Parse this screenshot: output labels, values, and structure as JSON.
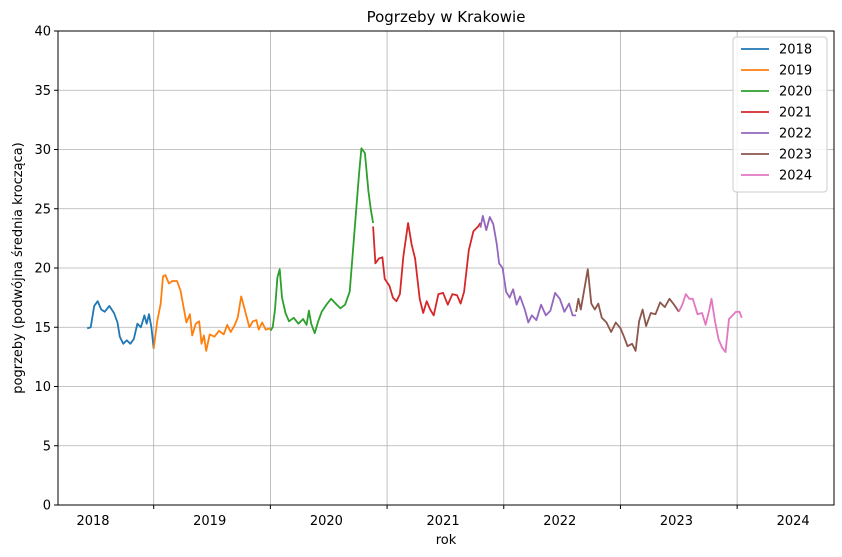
{
  "chart_data": {
    "type": "line",
    "title": "Pogrzeby w Krakowie",
    "xlabel": "rok",
    "ylabel": "pogrzeby (podwójna średnia krocząca)",
    "ylim": [
      0,
      40
    ],
    "xlim": [
      2017.7,
      2024.35
    ],
    "yticks": [
      0,
      5,
      10,
      15,
      20,
      25,
      30,
      35,
      40
    ],
    "xtick_labels": [
      {
        "label": "2018",
        "x": 2018.0
      },
      {
        "label": "2019",
        "x": 2019.0
      },
      {
        "label": "2020",
        "x": 2020.0
      },
      {
        "label": "2021",
        "x": 2021.0
      },
      {
        "label": "2022",
        "x": 2022.0
      },
      {
        "label": "2023",
        "x": 2023.0
      },
      {
        "label": "2024",
        "x": 2024.0
      }
    ],
    "vgrid": [
      2018.52,
      2019.52,
      2020.52,
      2021.52,
      2022.52,
      2023.52
    ],
    "grid": true,
    "legend_position": "top-right",
    "series": [
      {
        "name": "2018",
        "color": "#1f77b4",
        "points": [
          [
            2017.95,
            14.9
          ],
          [
            2017.98,
            15.0
          ],
          [
            2018.01,
            16.8
          ],
          [
            2018.04,
            17.2
          ],
          [
            2018.07,
            16.5
          ],
          [
            2018.1,
            16.3
          ],
          [
            2018.14,
            16.8
          ],
          [
            2018.18,
            16.2
          ],
          [
            2018.21,
            15.4
          ],
          [
            2018.23,
            14.2
          ],
          [
            2018.26,
            13.6
          ],
          [
            2018.29,
            13.9
          ],
          [
            2018.32,
            13.6
          ],
          [
            2018.35,
            14.0
          ],
          [
            2018.38,
            15.3
          ],
          [
            2018.41,
            15.0
          ],
          [
            2018.44,
            16.0
          ],
          [
            2018.46,
            15.3
          ],
          [
            2018.48,
            16.1
          ],
          [
            2018.5,
            15.0
          ],
          [
            2018.52,
            13.2
          ]
        ]
      },
      {
        "name": "2019",
        "color": "#ff7f0e",
        "points": [
          [
            2018.52,
            13.2
          ],
          [
            2018.55,
            15.5
          ],
          [
            2018.58,
            17.0
          ],
          [
            2018.6,
            19.3
          ],
          [
            2018.62,
            19.4
          ],
          [
            2018.65,
            18.7
          ],
          [
            2018.68,
            18.9
          ],
          [
            2018.72,
            18.9
          ],
          [
            2018.75,
            18.1
          ],
          [
            2018.78,
            16.5
          ],
          [
            2018.8,
            15.4
          ],
          [
            2018.83,
            16.1
          ],
          [
            2018.85,
            14.3
          ],
          [
            2018.88,
            15.3
          ],
          [
            2018.91,
            15.5
          ],
          [
            2018.93,
            13.6
          ],
          [
            2018.95,
            14.3
          ],
          [
            2018.97,
            13.0
          ],
          [
            2019.0,
            14.4
          ],
          [
            2019.04,
            14.2
          ],
          [
            2019.08,
            14.7
          ],
          [
            2019.12,
            14.4
          ],
          [
            2019.15,
            15.2
          ],
          [
            2019.18,
            14.6
          ],
          [
            2019.21,
            15.1
          ],
          [
            2019.24,
            15.8
          ],
          [
            2019.27,
            17.6
          ],
          [
            2019.3,
            16.5
          ],
          [
            2019.34,
            15.0
          ],
          [
            2019.37,
            15.5
          ],
          [
            2019.4,
            15.6
          ],
          [
            2019.42,
            14.8
          ],
          [
            2019.45,
            15.4
          ],
          [
            2019.48,
            14.8
          ],
          [
            2019.52,
            14.9
          ]
        ]
      },
      {
        "name": "2020",
        "color": "#2ca02c",
        "points": [
          [
            2019.52,
            14.7
          ],
          [
            2019.54,
            15.0
          ],
          [
            2019.56,
            16.5
          ],
          [
            2019.58,
            19.2
          ],
          [
            2019.6,
            19.9
          ],
          [
            2019.62,
            17.5
          ],
          [
            2019.65,
            16.2
          ],
          [
            2019.68,
            15.5
          ],
          [
            2019.72,
            15.8
          ],
          [
            2019.76,
            15.3
          ],
          [
            2019.8,
            15.7
          ],
          [
            2019.83,
            15.2
          ],
          [
            2019.85,
            16.4
          ],
          [
            2019.87,
            15.3
          ],
          [
            2019.9,
            14.5
          ],
          [
            2019.93,
            15.5
          ],
          [
            2019.96,
            16.3
          ],
          [
            2020.0,
            16.9
          ],
          [
            2020.04,
            17.4
          ],
          [
            2020.08,
            17.0
          ],
          [
            2020.12,
            16.6
          ],
          [
            2020.16,
            16.9
          ],
          [
            2020.2,
            18.0
          ],
          [
            2020.24,
            23.0
          ],
          [
            2020.28,
            28.0
          ],
          [
            2020.3,
            30.1
          ],
          [
            2020.33,
            29.7
          ],
          [
            2020.36,
            26.5
          ],
          [
            2020.38,
            25.0
          ],
          [
            2020.4,
            23.8
          ]
        ]
      },
      {
        "name": "2021",
        "color": "#d62728",
        "points": [
          [
            2020.4,
            23.5
          ],
          [
            2020.42,
            20.4
          ],
          [
            2020.45,
            20.8
          ],
          [
            2020.48,
            20.9
          ],
          [
            2020.5,
            19.1
          ],
          [
            2020.54,
            18.5
          ],
          [
            2020.57,
            17.5
          ],
          [
            2020.6,
            17.2
          ],
          [
            2020.63,
            17.8
          ],
          [
            2020.66,
            21.0
          ],
          [
            2020.7,
            23.8
          ],
          [
            2020.73,
            22.0
          ],
          [
            2020.76,
            20.8
          ],
          [
            2020.8,
            17.4
          ],
          [
            2020.83,
            16.2
          ],
          [
            2020.86,
            17.2
          ],
          [
            2020.89,
            16.5
          ],
          [
            2020.92,
            16.0
          ],
          [
            2020.96,
            17.8
          ],
          [
            2021.0,
            17.9
          ],
          [
            2021.04,
            16.9
          ],
          [
            2021.08,
            17.8
          ],
          [
            2021.12,
            17.7
          ],
          [
            2021.15,
            17.0
          ],
          [
            2021.18,
            18.0
          ],
          [
            2021.22,
            21.5
          ],
          [
            2021.26,
            23.1
          ],
          [
            2021.3,
            23.5
          ],
          [
            2021.32,
            23.8
          ]
        ]
      },
      {
        "name": "2022",
        "color": "#9467bd",
        "points": [
          [
            2021.32,
            23.4
          ],
          [
            2021.34,
            24.4
          ],
          [
            2021.37,
            23.2
          ],
          [
            2021.4,
            24.3
          ],
          [
            2021.43,
            23.7
          ],
          [
            2021.46,
            22.0
          ],
          [
            2021.48,
            20.4
          ],
          [
            2021.51,
            20.0
          ],
          [
            2021.54,
            18.0
          ],
          [
            2021.57,
            17.5
          ],
          [
            2021.6,
            18.2
          ],
          [
            2021.63,
            16.9
          ],
          [
            2021.66,
            17.6
          ],
          [
            2021.7,
            16.5
          ],
          [
            2021.73,
            15.4
          ],
          [
            2021.76,
            16.0
          ],
          [
            2021.8,
            15.6
          ],
          [
            2021.84,
            16.9
          ],
          [
            2021.88,
            16.0
          ],
          [
            2021.92,
            16.4
          ],
          [
            2021.96,
            17.9
          ],
          [
            2022.0,
            17.4
          ],
          [
            2022.04,
            16.3
          ],
          [
            2022.08,
            17.0
          ],
          [
            2022.11,
            16.0
          ],
          [
            2022.14,
            16.0
          ]
        ]
      },
      {
        "name": "2023",
        "color": "#8c564b",
        "points": [
          [
            2022.14,
            16.3
          ],
          [
            2022.16,
            17.4
          ],
          [
            2022.18,
            16.5
          ],
          [
            2022.21,
            18.2
          ],
          [
            2022.24,
            19.9
          ],
          [
            2022.27,
            17.0
          ],
          [
            2022.3,
            16.5
          ],
          [
            2022.33,
            17.0
          ],
          [
            2022.36,
            15.8
          ],
          [
            2022.4,
            15.4
          ],
          [
            2022.44,
            14.6
          ],
          [
            2022.48,
            15.4
          ],
          [
            2022.52,
            14.9
          ],
          [
            2022.55,
            14.2
          ],
          [
            2022.58,
            13.4
          ],
          [
            2022.62,
            13.6
          ],
          [
            2022.65,
            13.0
          ],
          [
            2022.68,
            15.5
          ],
          [
            2022.71,
            16.5
          ],
          [
            2022.74,
            15.1
          ],
          [
            2022.78,
            16.2
          ],
          [
            2022.82,
            16.1
          ],
          [
            2022.86,
            17.1
          ],
          [
            2022.9,
            16.7
          ],
          [
            2022.94,
            17.4
          ],
          [
            2022.98,
            16.9
          ],
          [
            2023.02,
            16.3
          ]
        ]
      },
      {
        "name": "2024",
        "color": "#e377c2",
        "points": [
          [
            2023.02,
            16.3
          ],
          [
            2023.05,
            16.9
          ],
          [
            2023.08,
            17.8
          ],
          [
            2023.11,
            17.4
          ],
          [
            2023.14,
            17.4
          ],
          [
            2023.18,
            16.1
          ],
          [
            2023.22,
            16.2
          ],
          [
            2023.25,
            15.2
          ],
          [
            2023.28,
            16.4
          ],
          [
            2023.3,
            17.4
          ],
          [
            2023.33,
            15.5
          ],
          [
            2023.36,
            14.0
          ],
          [
            2023.39,
            13.3
          ],
          [
            2023.42,
            12.9
          ],
          [
            2023.45,
            15.7
          ],
          [
            2023.48,
            16.0
          ],
          [
            2023.51,
            16.3
          ],
          [
            2023.54,
            16.3
          ],
          [
            2023.56,
            15.8
          ]
        ]
      }
    ]
  }
}
